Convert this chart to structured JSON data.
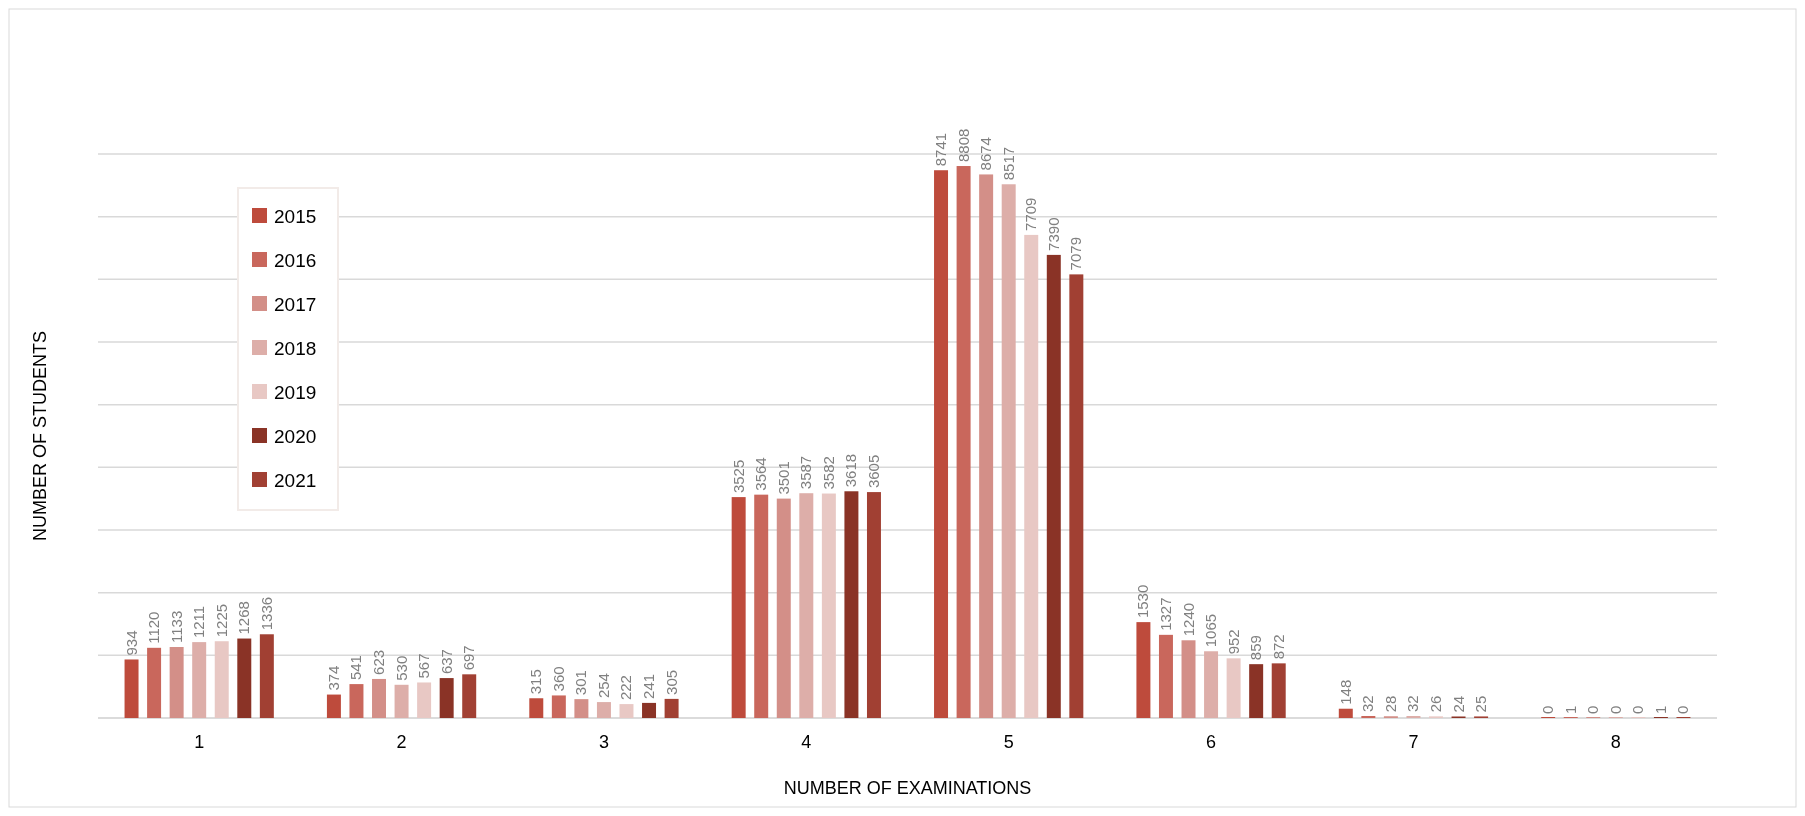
{
  "chart_data": {
    "type": "bar",
    "xlabel": "NUMBER OF EXAMINATIONS",
    "ylabel": "NUMBER OF STUDENTS",
    "categories": [
      "1",
      "2",
      "3",
      "4",
      "5",
      "6",
      "7",
      "8"
    ],
    "series": [
      {
        "name": "2015",
        "color": "#be4b3c",
        "values": [
          934,
          374,
          315,
          3525,
          8741,
          1530,
          148,
          0
        ]
      },
      {
        "name": "2016",
        "color": "#c9675c",
        "values": [
          1120,
          541,
          360,
          3564,
          8808,
          1327,
          32,
          1
        ]
      },
      {
        "name": "2017",
        "color": "#d38f88",
        "values": [
          1133,
          623,
          301,
          3501,
          8674,
          1240,
          28,
          0
        ]
      },
      {
        "name": "2018",
        "color": "#ddaea9",
        "values": [
          1211,
          530,
          254,
          3587,
          8517,
          1065,
          32,
          0
        ]
      },
      {
        "name": "2019",
        "color": "#e8c8c4",
        "values": [
          1225,
          567,
          222,
          3582,
          7709,
          952,
          26,
          0
        ]
      },
      {
        "name": "2020",
        "color": "#8a3326",
        "values": [
          1268,
          637,
          241,
          3618,
          7390,
          859,
          24,
          1
        ]
      },
      {
        "name": "2021",
        "color": "#a14033",
        "values": [
          1336,
          697,
          305,
          3605,
          7079,
          872,
          25,
          0
        ]
      }
    ],
    "ylim": [
      0,
      9000
    ],
    "yticks": [
      {
        "value": 0,
        "label": null
      },
      {
        "value": 1000,
        "label": null
      },
      {
        "value": 2000,
        "label": null
      },
      {
        "value": 3000,
        "label": null
      },
      {
        "value": 4000,
        "label": null
      },
      {
        "value": 5000,
        "label": null
      },
      {
        "value": 6000,
        "label": null
      },
      {
        "value": 7000,
        "label": null
      },
      {
        "value": 8000,
        "label": null
      },
      {
        "value": 9000,
        "label": null
      }
    ],
    "tick_labels": "x",
    "grid": "y",
    "legend": "top left",
    "data_labels": true
  }
}
